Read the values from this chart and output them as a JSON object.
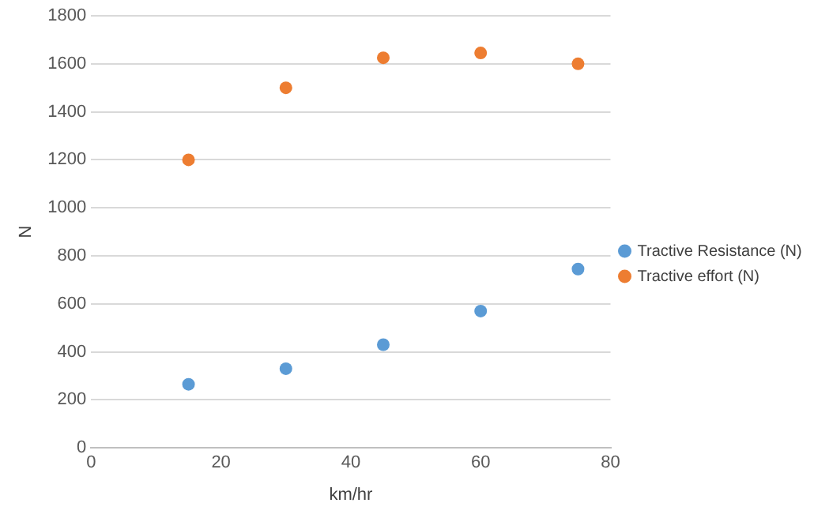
{
  "chart_data": {
    "type": "scatter",
    "xlabel": "km/hr",
    "ylabel": "N",
    "x": [
      15,
      30,
      45,
      60,
      75
    ],
    "series": [
      {
        "name": "Tractive Resistance (N)",
        "color": "#5b9bd5",
        "values": [
          265,
          330,
          430,
          570,
          745
        ]
      },
      {
        "name": "Tractive effort (N)",
        "color": "#ed7d31",
        "values": [
          1200,
          1500,
          1625,
          1645,
          1600
        ]
      }
    ],
    "xlim": [
      0,
      80
    ],
    "xticks": [
      0,
      20,
      40,
      60,
      80
    ],
    "ylim": [
      0,
      1800
    ],
    "yticks": [
      0,
      200,
      400,
      600,
      800,
      1000,
      1200,
      1400,
      1600,
      1800
    ],
    "grid": "y",
    "legend": "right",
    "marker": "circle"
  }
}
